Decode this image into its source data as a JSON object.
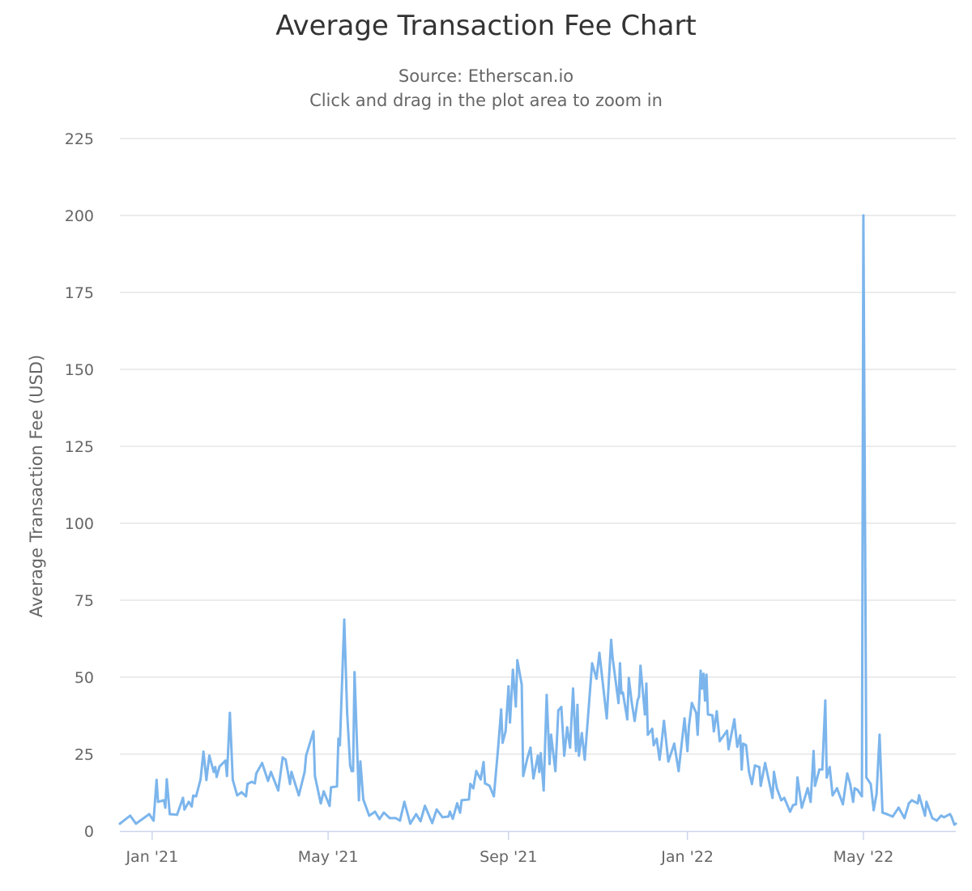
{
  "chart_data": {
    "type": "line",
    "title": "Average Transaction Fee Chart",
    "subtitle": [
      "Source: Etherscan.io",
      "Click and drag in the plot area to zoom in"
    ],
    "xlabel": "",
    "ylabel": "Average Transaction Fee (USD)",
    "ylim": [
      0,
      225
    ],
    "yticks": [
      0,
      25,
      50,
      75,
      100,
      125,
      150,
      175,
      200,
      225
    ],
    "xlim": [
      "2020-12-10",
      "2022-07-03"
    ],
    "xticks": [
      {
        "date": "2021-01-01",
        "label": "Jan '21"
      },
      {
        "date": "2021-05-01",
        "label": "May '21"
      },
      {
        "date": "2021-09-01",
        "label": "Sep '21"
      },
      {
        "date": "2022-01-01",
        "label": "Jan '22"
      },
      {
        "date": "2022-05-01",
        "label": "May '22"
      }
    ],
    "grid": true,
    "legend": "none",
    "color": "#7cb5ec",
    "series": [
      {
        "points": [
          [
            "2020-12-10",
            2.4
          ],
          [
            "2020-12-17",
            5
          ],
          [
            "2020-12-21",
            2.4
          ],
          [
            "2020-12-30",
            5.5
          ],
          [
            "2021-01-02",
            3.4
          ],
          [
            "2021-01-04",
            16.6
          ],
          [
            "2021-01-05",
            9.5
          ],
          [
            "2021-01-09",
            10
          ],
          [
            "2021-01-10",
            7.6
          ],
          [
            "2021-01-11",
            16.8
          ],
          [
            "2021-01-13",
            5.5
          ],
          [
            "2021-01-18",
            5.3
          ],
          [
            "2021-01-22",
            10.8
          ],
          [
            "2021-01-23",
            7
          ],
          [
            "2021-01-26",
            9.5
          ],
          [
            "2021-01-28",
            8
          ],
          [
            "2021-01-29",
            11.5
          ],
          [
            "2021-01-31",
            11.3
          ],
          [
            "2021-02-03",
            16.8
          ],
          [
            "2021-02-05",
            25.8
          ],
          [
            "2021-02-07",
            16.6
          ],
          [
            "2021-02-09",
            24.5
          ],
          [
            "2021-02-12",
            19.2
          ],
          [
            "2021-02-13",
            20.8
          ],
          [
            "2021-02-14",
            17.6
          ],
          [
            "2021-02-16",
            21
          ],
          [
            "2021-02-20",
            22.9
          ],
          [
            "2021-02-21",
            17.9
          ],
          [
            "2021-02-23",
            38.4
          ],
          [
            "2021-02-25",
            16.6
          ],
          [
            "2021-02-28",
            11.6
          ],
          [
            "2021-03-03",
            12.6
          ],
          [
            "2021-03-06",
            11.3
          ],
          [
            "2021-03-07",
            15.3
          ],
          [
            "2021-03-10",
            16
          ],
          [
            "2021-03-12",
            15.5
          ],
          [
            "2021-03-13",
            18.7
          ],
          [
            "2021-03-17",
            22.1
          ],
          [
            "2021-03-21",
            16.3
          ],
          [
            "2021-03-23",
            19.2
          ],
          [
            "2021-03-25",
            16.8
          ],
          [
            "2021-03-28",
            13.2
          ],
          [
            "2021-03-31",
            23.9
          ],
          [
            "2021-04-02",
            23.2
          ],
          [
            "2021-04-05",
            15.3
          ],
          [
            "2021-04-06",
            19.2
          ],
          [
            "2021-04-11",
            11.6
          ],
          [
            "2021-04-15",
            19.2
          ],
          [
            "2021-04-16",
            24.5
          ],
          [
            "2021-04-21",
            32.4
          ],
          [
            "2021-04-22",
            17.9
          ],
          [
            "2021-04-26",
            9
          ],
          [
            "2021-04-28",
            12.9
          ],
          [
            "2021-05-02",
            8.2
          ],
          [
            "2021-05-03",
            14.2
          ],
          [
            "2021-05-07",
            14.5
          ],
          [
            "2021-05-08",
            30
          ],
          [
            "2021-05-09",
            27.9
          ],
          [
            "2021-05-12",
            68.7
          ],
          [
            "2021-05-14",
            38.4
          ],
          [
            "2021-05-16",
            21.3
          ],
          [
            "2021-05-17",
            19.5
          ],
          [
            "2021-05-18",
            19.5
          ],
          [
            "2021-05-19",
            51.6
          ],
          [
            "2021-05-22",
            10
          ],
          [
            "2021-05-23",
            22.6
          ],
          [
            "2021-05-25",
            10.3
          ],
          [
            "2021-05-29",
            5
          ],
          [
            "2021-06-02",
            6.3
          ],
          [
            "2021-06-05",
            3.9
          ],
          [
            "2021-06-08",
            6
          ],
          [
            "2021-06-12",
            4.2
          ],
          [
            "2021-06-16",
            4.2
          ],
          [
            "2021-06-19",
            3.4
          ],
          [
            "2021-06-22",
            9.5
          ],
          [
            "2021-06-26",
            2.4
          ],
          [
            "2021-06-30",
            5.5
          ],
          [
            "2021-07-03",
            3.2
          ],
          [
            "2021-07-06",
            8.2
          ],
          [
            "2021-07-11",
            2.6
          ],
          [
            "2021-07-14",
            7
          ],
          [
            "2021-07-18",
            4.5
          ],
          [
            "2021-07-22",
            4.7
          ],
          [
            "2021-07-23",
            6.3
          ],
          [
            "2021-07-25",
            4
          ],
          [
            "2021-07-28",
            9
          ],
          [
            "2021-07-30",
            6
          ],
          [
            "2021-07-31",
            10
          ],
          [
            "2021-08-05",
            10.3
          ],
          [
            "2021-08-06",
            15.3
          ],
          [
            "2021-08-08",
            13.9
          ],
          [
            "2021-08-10",
            19.5
          ],
          [
            "2021-08-13",
            16.8
          ],
          [
            "2021-08-15",
            22.4
          ],
          [
            "2021-08-16",
            15.5
          ],
          [
            "2021-08-19",
            14.7
          ],
          [
            "2021-08-22",
            11.3
          ],
          [
            "2021-08-25",
            27.4
          ],
          [
            "2021-08-27",
            39.5
          ],
          [
            "2021-08-28",
            28.7
          ],
          [
            "2021-08-30",
            32.4
          ],
          [
            "2021-09-01",
            47
          ],
          [
            "2021-09-02",
            35.3
          ],
          [
            "2021-09-04",
            52.4
          ],
          [
            "2021-09-06",
            40.5
          ],
          [
            "2021-09-07",
            55.5
          ],
          [
            "2021-09-10",
            47.6
          ],
          [
            "2021-09-11",
            17.9
          ],
          [
            "2021-09-14",
            23.9
          ],
          [
            "2021-09-16",
            27.1
          ],
          [
            "2021-09-18",
            17.1
          ],
          [
            "2021-09-21",
            24.5
          ],
          [
            "2021-09-22",
            19.2
          ],
          [
            "2021-09-23",
            25.3
          ],
          [
            "2021-09-25",
            13.2
          ],
          [
            "2021-09-27",
            44.2
          ],
          [
            "2021-09-29",
            21.8
          ],
          [
            "2021-09-30",
            31.3
          ],
          [
            "2021-10-03",
            19.5
          ],
          [
            "2021-10-05",
            39.2
          ],
          [
            "2021-10-07",
            40.3
          ],
          [
            "2021-10-09",
            24.5
          ],
          [
            "2021-10-11",
            33.7
          ],
          [
            "2021-10-13",
            27.1
          ],
          [
            "2021-10-15",
            46.3
          ],
          [
            "2021-10-17",
            26
          ],
          [
            "2021-10-18",
            41
          ],
          [
            "2021-10-19",
            24.5
          ],
          [
            "2021-10-21",
            31.8
          ],
          [
            "2021-10-23",
            23.2
          ],
          [
            "2021-10-28",
            54.5
          ],
          [
            "2021-10-31",
            49.5
          ],
          [
            "2021-11-02",
            57.9
          ],
          [
            "2021-11-07",
            36.6
          ],
          [
            "2021-11-10",
            62.1
          ],
          [
            "2021-11-11",
            56.3
          ],
          [
            "2021-11-15",
            41.6
          ],
          [
            "2021-11-16",
            54.5
          ],
          [
            "2021-11-17",
            44.7
          ],
          [
            "2021-11-18",
            45
          ],
          [
            "2021-11-21",
            36.3
          ],
          [
            "2021-11-22",
            49.7
          ],
          [
            "2021-11-24",
            41.8
          ],
          [
            "2021-11-26",
            35.8
          ],
          [
            "2021-11-28",
            42.4
          ],
          [
            "2021-11-29",
            43.7
          ],
          [
            "2021-11-30",
            53.7
          ],
          [
            "2021-12-03",
            37.9
          ],
          [
            "2021-12-04",
            47.9
          ],
          [
            "2021-12-05",
            31.3
          ],
          [
            "2021-12-08",
            33.2
          ],
          [
            "2021-12-09",
            27.9
          ],
          [
            "2021-12-11",
            30
          ],
          [
            "2021-12-13",
            23.2
          ],
          [
            "2021-12-14",
            27.1
          ],
          [
            "2021-12-16",
            35.8
          ],
          [
            "2021-12-19",
            22.6
          ],
          [
            "2021-12-23",
            28.4
          ],
          [
            "2021-12-26",
            19.5
          ],
          [
            "2021-12-30",
            36.6
          ],
          [
            "2022-01-01",
            26
          ],
          [
            "2022-01-02",
            34
          ],
          [
            "2022-01-04",
            41.6
          ],
          [
            "2022-01-07",
            38.4
          ],
          [
            "2022-01-08",
            31.3
          ],
          [
            "2022-01-10",
            52.1
          ],
          [
            "2022-01-11",
            46.3
          ],
          [
            "2022-01-12",
            51.1
          ],
          [
            "2022-01-13",
            42.4
          ],
          [
            "2022-01-14",
            50.8
          ],
          [
            "2022-01-15",
            37.9
          ],
          [
            "2022-01-18",
            37.6
          ],
          [
            "2022-01-19",
            32.4
          ],
          [
            "2022-01-21",
            38.9
          ],
          [
            "2022-01-23",
            29.2
          ],
          [
            "2022-01-28",
            32.6
          ],
          [
            "2022-01-29",
            26.6
          ],
          [
            "2022-02-02",
            36.3
          ],
          [
            "2022-02-04",
            27.4
          ],
          [
            "2022-02-06",
            31.1
          ],
          [
            "2022-02-07",
            20
          ],
          [
            "2022-02-08",
            28.4
          ],
          [
            "2022-02-10",
            27.9
          ],
          [
            "2022-02-12",
            19.2
          ],
          [
            "2022-02-14",
            15.3
          ],
          [
            "2022-02-16",
            21.3
          ],
          [
            "2022-02-19",
            20.8
          ],
          [
            "2022-02-20",
            14.7
          ],
          [
            "2022-02-23",
            22.1
          ],
          [
            "2022-02-28",
            10.8
          ],
          [
            "2022-03-01",
            19.2
          ],
          [
            "2022-03-03",
            13.9
          ],
          [
            "2022-03-06",
            10
          ],
          [
            "2022-03-08",
            10.8
          ],
          [
            "2022-03-12",
            6.3
          ],
          [
            "2022-03-14",
            8.4
          ],
          [
            "2022-03-16",
            8.7
          ],
          [
            "2022-03-17",
            17.4
          ],
          [
            "2022-03-20",
            7.6
          ],
          [
            "2022-03-24",
            13.9
          ],
          [
            "2022-03-26",
            9.5
          ],
          [
            "2022-03-28",
            26
          ],
          [
            "2022-03-29",
            14.7
          ],
          [
            "2022-04-01",
            20
          ],
          [
            "2022-04-03",
            20
          ],
          [
            "2022-04-05",
            42.4
          ],
          [
            "2022-04-06",
            17.4
          ],
          [
            "2022-04-08",
            20.8
          ],
          [
            "2022-04-10",
            11.6
          ],
          [
            "2022-04-13",
            13.9
          ],
          [
            "2022-04-17",
            8.7
          ],
          [
            "2022-04-20",
            18.7
          ],
          [
            "2022-04-22",
            15.3
          ],
          [
            "2022-04-24",
            9.5
          ],
          [
            "2022-04-25",
            13.9
          ],
          [
            "2022-04-27",
            13.4
          ],
          [
            "2022-04-30",
            11.3
          ],
          [
            "2022-05-01",
            200
          ],
          [
            "2022-05-03",
            17.4
          ],
          [
            "2022-05-06",
            15.3
          ],
          [
            "2022-05-08",
            6.8
          ],
          [
            "2022-05-10",
            12.1
          ],
          [
            "2022-05-12",
            31.3
          ],
          [
            "2022-05-14",
            6
          ],
          [
            "2022-05-17",
            5.5
          ],
          [
            "2022-05-21",
            4.7
          ],
          [
            "2022-05-25",
            7.6
          ],
          [
            "2022-05-29",
            4.2
          ],
          [
            "2022-06-01",
            9
          ],
          [
            "2022-06-03",
            10
          ],
          [
            "2022-06-07",
            9
          ],
          [
            "2022-06-08",
            11.6
          ],
          [
            "2022-06-12",
            5
          ],
          [
            "2022-06-13",
            9.5
          ],
          [
            "2022-06-17",
            4.2
          ],
          [
            "2022-06-20",
            3.4
          ],
          [
            "2022-06-23",
            5
          ],
          [
            "2022-06-25",
            4.5
          ],
          [
            "2022-06-29",
            5.5
          ],
          [
            "2022-06-30",
            4.7
          ],
          [
            "2022-07-02",
            2.1
          ],
          [
            "2022-07-03",
            2.4
          ]
        ]
      }
    ]
  }
}
